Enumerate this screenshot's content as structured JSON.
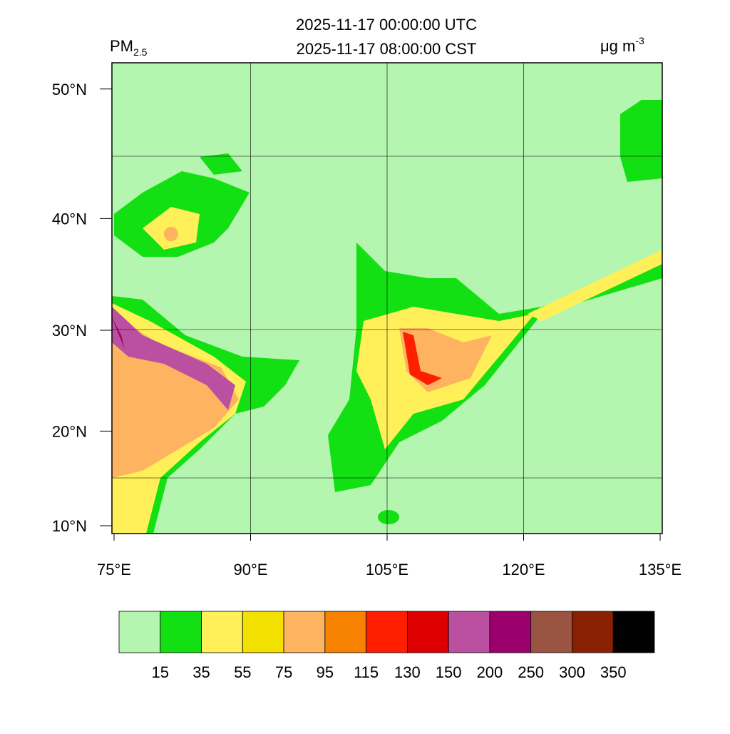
{
  "header": {
    "title_lines": [
      "2025-11-17 00:00:00 UTC",
      "2025-11-17 08:00:00 CST"
    ],
    "variable": "PM",
    "variable_sub": "2.5",
    "units": "μg m",
    "units_sup": "-3"
  },
  "map": {
    "xlim": [
      75,
      135
    ],
    "ylim": [
      9,
      52
    ],
    "xticks": [
      {
        "value": 75,
        "label": "75°E"
      },
      {
        "value": 90,
        "label": "90°E"
      },
      {
        "value": 105,
        "label": "105°E"
      },
      {
        "value": 120,
        "label": "120°E"
      },
      {
        "value": 135,
        "label": "135°E"
      }
    ],
    "yticks": [
      {
        "value": 10,
        "label": "10°N"
      },
      {
        "value": 20,
        "label": "20°N"
      },
      {
        "value": 30,
        "label": "30°N"
      },
      {
        "value": 40,
        "label": "40°N"
      },
      {
        "value": 50,
        "label": "50°N"
      }
    ]
  },
  "colorbar": {
    "levels": [
      15,
      35,
      55,
      75,
      95,
      115,
      130,
      150,
      200,
      250,
      300,
      350
    ],
    "colors": [
      "#b4f5b0",
      "#12e012",
      "#fff05a",
      "#f2e000",
      "#fdb35f",
      "#f68200",
      "#fe1e00",
      "#de0000",
      "#bb4fa0",
      "#9c006e",
      "#9a5542",
      "#892002",
      "#000000"
    ]
  }
}
